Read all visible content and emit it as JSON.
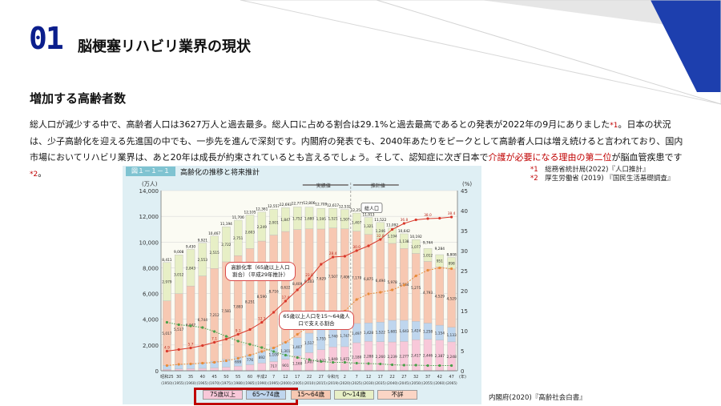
{
  "slide": {
    "number": "01",
    "title": "脳梗塞リハビリ業界の現状",
    "section_heading": "増加する高齢者数",
    "body_part1": "総人口が減少する中で、高齢者人口は3627万人と過去最多。総人口に占める割合は29.1%と過去最高であるとの発表が2022年の9月にありました",
    "body_ref1": "*1",
    "body_part2": "。日本の状況は、少子高齢化を迎える先進国の中でも、一歩先を進んで深刻です。内閣府の発表でも、2040年あたりをピークとして高齢者人口は増え続けると言われており、国内市場においてリハビリ業界は、あと20年は成長が約束されているとも言えるでしょう。そして、認知症に次ぎ日本で",
    "body_highlight": "介護が必要になる理由の第二位",
    "body_part3": "が脳血管疾患です",
    "body_ref2": "*2",
    "body_part4": "。",
    "references": [
      {
        "label": "*1",
        "text": "総務省統計局(2022)『人口推計』"
      },
      {
        "label": "*2",
        "text": "厚生労働省 (2019) 『国民生活基礎調査』"
      }
    ],
    "source": "内閣府(2020)『高齢社会白書』",
    "accent_color": "#0b1e8c",
    "highlight_color": "#c00000"
  },
  "chart_data": {
    "type": "bar",
    "figure_label": "図１－１－１",
    "title": "高齢化の推移と将来推計",
    "y_left_unit": "(万人)",
    "y_right_unit": "(%)",
    "ylim": [
      0,
      14000
    ],
    "y2lim": [
      0,
      45
    ],
    "y_ticks": [
      "0",
      "2,000",
      "4,000",
      "6,000",
      "8,000",
      "10,000",
      "12,000",
      "14,000"
    ],
    "y2_ticks": [
      "0",
      "5",
      "10",
      "15",
      "20",
      "25",
      "30",
      "35",
      "40",
      "45"
    ],
    "actual_label": "実績値",
    "projection_label": "推計値",
    "total_label": "総人口",
    "x_unit": "(年)",
    "categories": [
      "昭和25",
      "30",
      "35",
      "40",
      "45",
      "50",
      "55",
      "60",
      "平成2",
      "7",
      "12",
      "17",
      "22",
      "27",
      "令和元",
      "2",
      "7",
      "12",
      "17",
      "22",
      "27",
      "32",
      "37",
      "42",
      "47"
    ],
    "years": [
      "(1950)",
      "(1955)",
      "(1960)",
      "(1965)",
      "(1970)",
      "(1975)",
      "(1980)",
      "(1985)",
      "(1990)",
      "(1995)",
      "(2000)",
      "(2005)",
      "(2010)",
      "(2015)",
      "(2019)",
      "(2020)",
      "(2025)",
      "(2030)",
      "(2035)",
      "(2040)",
      "(2045)",
      "(2050)",
      "(2055)",
      "(2060)",
      "(2065)"
    ],
    "totals": [
      8411,
      9008,
      9430,
      9921,
      10467,
      11194,
      11706,
      12105,
      12361,
      12557,
      12693,
      12777,
      12806,
      12709,
      12617,
      12532,
      12254,
      11913,
      11522,
      11092,
      10642,
      10192,
      9744,
      9284,
      8808
    ],
    "series": [
      {
        "name": "75歳以上",
        "color": "#f8c8d9",
        "values": [
          107,
          139,
          164,
          189,
          225,
          284,
          366,
          471,
          597,
          717,
          901,
          1160,
          1407,
          1632,
          1849,
          1872,
          2180,
          2288,
          2260,
          2239,
          2277,
          2417,
          2446,
          2387,
          2248
        ]
      },
      {
        "name": "65～74歳",
        "color": "#bfd6ee",
        "values": [
          309,
          336,
          376,
          435,
          515,
          603,
          699,
          776,
          892,
          1109,
          1301,
          1407,
          1517,
          1755,
          1740,
          1747,
          1497,
          1428,
          1522,
          1681,
          1643,
          1424,
          1258,
          1154,
          1133
        ]
      },
      {
        "name": "15～64歳",
        "color": "#f7c8b2",
        "values": [
          5017,
          5517,
          6047,
          6744,
          7212,
          7581,
          7883,
          8251,
          8590,
          8716,
          8622,
          8409,
          8103,
          7629,
          7507,
          7406,
          7170,
          6875,
          6494,
          5978,
          5584,
          5275,
          4793,
          4529,
          4529
        ]
      },
      {
        "name": "0～14歳",
        "color": "#e7efc6",
        "values": [
          2979,
          3012,
          2843,
          2553,
          2515,
          2722,
          2751,
          2603,
          2249,
          2001,
          1847,
          1752,
          1680,
          1595,
          1521,
          1507,
          1407,
          1321,
          1246,
          1194,
          1138,
          1077,
          1012,
          951,
          898
        ]
      },
      {
        "name": "不詳",
        "color": "#fbd5c5",
        "values": [
          0,
          0,
          0,
          0,
          0,
          0,
          0,
          0,
          0,
          0,
          0,
          0,
          0,
          0,
          0,
          0,
          0,
          0,
          0,
          0,
          0,
          0,
          0,
          0,
          0
        ]
      }
    ],
    "aging_rate": [
      4.9,
      5.3,
      5.7,
      6.3,
      7.1,
      7.9,
      9.1,
      10.3,
      12.1,
      14.6,
      17.4,
      20.2,
      23.0,
      26.6,
      28.4,
      28.6,
      30.0,
      31.2,
      32.8,
      35.3,
      36.8,
      37.7,
      38.0,
      38.1,
      38.4
    ],
    "aging_rate_75": [
      1.3,
      1.6,
      1.7,
      1.9,
      2.1,
      2.5,
      3.1,
      3.9,
      4.8,
      5.7,
      7.1,
      9.1,
      11.1,
      12.8,
      14.7,
      14.9,
      17.8,
      19.2,
      19.6,
      20.2,
      21.4,
      23.7,
      25.1,
      25.7,
      25.5
    ],
    "working_ratio": [
      12.1,
      11.5,
      11.2,
      10.8,
      9.8,
      8.6,
      7.4,
      6.6,
      5.8,
      4.8,
      3.9,
      3.3,
      2.8,
      2.3,
      2.1,
      2.1,
      1.9,
      1.8,
      1.7,
      1.5,
      1.4,
      1.4,
      1.3,
      1.3,
      1.3
    ],
    "annotation1": "高齢化率（65歳以上人口割合）（平成29年推計）",
    "annotation2": "65歳以上人口を15～64歳人口で支える割合",
    "legend": [
      "75歳以上",
      "65～74歳",
      "15～64歳",
      "0～14歳",
      "不詳"
    ]
  }
}
